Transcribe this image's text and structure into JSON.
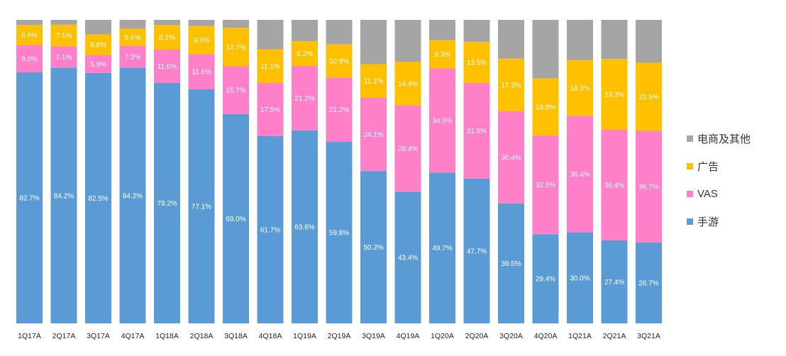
{
  "chart_data": {
    "type": "bar",
    "stacked": true,
    "normalized_percent": true,
    "categories": [
      "1Q17A",
      "2Q17A",
      "3Q17A",
      "4Q17A",
      "1Q18A",
      "2Q18A",
      "3Q18A",
      "4Q18A",
      "1Q19A",
      "2Q19A",
      "3Q19A",
      "4Q19A",
      "1Q20A",
      "2Q20A",
      "3Q20A",
      "4Q20A",
      "1Q21A",
      "2Q21A",
      "3Q21A"
    ],
    "series": [
      {
        "name": "手游",
        "color": "#5B9BD5",
        "values": [
          82.7,
          84.2,
          82.5,
          84.2,
          79.2,
          77.1,
          69.0,
          61.7,
          63.6,
          59.8,
          50.2,
          43.4,
          49.7,
          47.7,
          39.5,
          29.4,
          30.0,
          27.4,
          26.7
        ],
        "labels": [
          "82.7%",
          "84.2%",
          "82.5%",
          "84.2%",
          "79.2%",
          "77.1%",
          "69.0%",
          "61.7%",
          "63.6%",
          "59.8%",
          "50.2%",
          "43.4%",
          "49.7%",
          "47.7%",
          "39.5%",
          "29.4%",
          "30.0%",
          "27.4%",
          "26.7%"
        ]
      },
      {
        "name": "VAS",
        "color": "#FF7FC8",
        "values": [
          9.0,
          7.1,
          5.9,
          7.3,
          11.0,
          11.6,
          15.7,
          17.5,
          21.2,
          21.2,
          24.1,
          28.4,
          34.3,
          31.5,
          30.4,
          32.5,
          38.4,
          36.4,
          36.7
        ],
        "labels": [
          "9.0%",
          "7.1%",
          "5.9%",
          "7.3%",
          "11.0%",
          "11.6%",
          "15.7%",
          "17.5%",
          "21.2%",
          "21.2%",
          "24.1%",
          "28.4%",
          "34.3%",
          "31.5%",
          "30.4%",
          "32.5%",
          "38.4%",
          "36.4%",
          "36.7%"
        ]
      },
      {
        "name": "广告",
        "color": "#FFC000",
        "values": [
          6.6,
          7.1,
          6.8,
          5.6,
          8.1,
          9.3,
          12.7,
          11.1,
          8.2,
          10.9,
          11.1,
          14.4,
          9.3,
          13.5,
          17.3,
          18.8,
          18.3,
          23.3,
          22.5
        ],
        "labels": [
          "6.6%",
          "7.1%",
          "6.8%",
          "5.6%",
          "8.1%",
          "9.3%",
          "12.7%",
          "11.1%",
          "8.2%",
          "10.9%",
          "11.1%",
          "14.4%",
          "9.3%",
          "13.5%",
          "17.3%",
          "18.8%",
          "18.3%",
          "23.3%",
          "22.5%"
        ]
      },
      {
        "name": "电商及其他",
        "color": "#A5A5A5",
        "values": [
          1.7,
          1.6,
          4.8,
          2.9,
          1.7,
          2.0,
          2.6,
          9.7,
          7.0,
          8.1,
          14.6,
          13.8,
          6.7,
          7.3,
          12.8,
          19.3,
          13.3,
          12.9,
          14.1
        ],
        "labels": []
      }
    ],
    "ylim": [
      0,
      100
    ],
    "legend": {
      "position": "right",
      "order": [
        "电商及其他",
        "广告",
        "VAS",
        "手游"
      ]
    }
  }
}
